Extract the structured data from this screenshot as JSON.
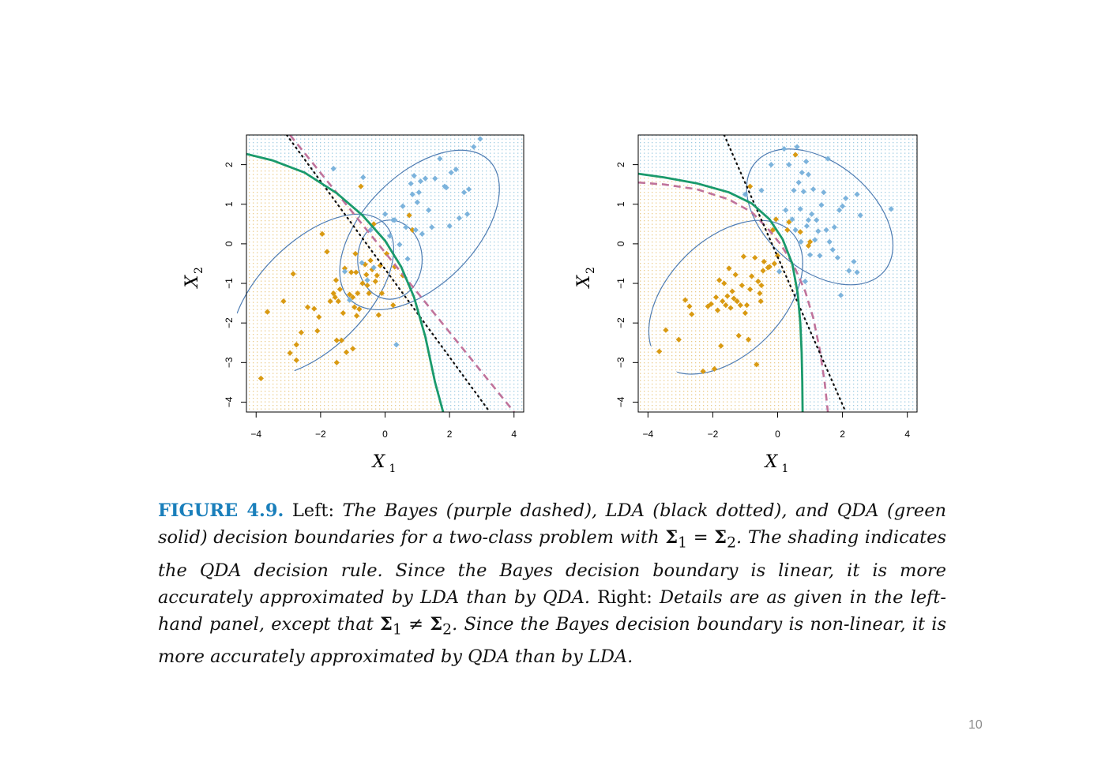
{
  "chart_data": [
    {
      "type": "scatter",
      "panel": "left",
      "xlabel": "X",
      "xlabel_sub": "1",
      "ylabel": "X",
      "ylabel_sub": "2",
      "xlim": [
        -4.3,
        4.3
      ],
      "ylim": [
        -4.25,
        2.75
      ],
      "xticks": [
        -4,
        -2,
        0,
        2,
        4
      ],
      "yticks": [
        -4,
        -3,
        -2,
        -1,
        0,
        1,
        2
      ],
      "xtick_labels": [
        "−4",
        "−2",
        "0",
        "2",
        "4"
      ],
      "ytick_labels": [
        "−4",
        "−3",
        "−2",
        "−1",
        "0",
        "1",
        "2"
      ],
      "boundary_colors": {
        "bayes": "#c0739b",
        "lda": "#111111",
        "qda": "#1a9a6c"
      },
      "region_colors": {
        "orange": "#e2b860",
        "blue": "#7fb9d8"
      },
      "ellipse_color": "#4f7db3",
      "series": [
        {
          "class": "orange",
          "color": "#d99a12",
          "points": [
            [
              -3.85,
              -3.4
            ],
            [
              -3.65,
              -1.72
            ],
            [
              -3.15,
              -1.45
            ],
            [
              -2.95,
              -2.76
            ],
            [
              -2.85,
              -0.76
            ],
            [
              -2.75,
              -2.94
            ],
            [
              -2.75,
              -2.55
            ],
            [
              -2.6,
              -2.24
            ],
            [
              -2.4,
              -1.6
            ],
            [
              -2.2,
              -1.64
            ],
            [
              -2.1,
              -2.2
            ],
            [
              -2.05,
              -1.85
            ],
            [
              -1.95,
              0.25
            ],
            [
              -1.8,
              -0.2
            ],
            [
              -1.7,
              -1.45
            ],
            [
              -1.6,
              -1.25
            ],
            [
              -1.55,
              -1.35
            ],
            [
              -1.52,
              -0.92
            ],
            [
              -1.5,
              -2.44
            ],
            [
              -1.5,
              -3.0
            ],
            [
              -1.45,
              -1.45
            ],
            [
              -1.4,
              -1.15
            ],
            [
              -1.35,
              -2.44
            ],
            [
              -1.3,
              -1.75
            ],
            [
              -1.25,
              -0.62
            ],
            [
              -1.2,
              -2.74
            ],
            [
              -1.1,
              -1.28
            ],
            [
              -1.05,
              -0.72
            ],
            [
              -1.0,
              -2.65
            ],
            [
              -1.0,
              -1.35
            ],
            [
              -0.95,
              -1.6
            ],
            [
              -0.92,
              -0.25
            ],
            [
              -0.9,
              -0.72
            ],
            [
              -0.88,
              -1.82
            ],
            [
              -0.85,
              -1.25
            ],
            [
              -0.8,
              -1.65
            ],
            [
              -0.75,
              1.45
            ],
            [
              -0.7,
              -1.0
            ],
            [
              -0.62,
              -0.52
            ],
            [
              -0.58,
              -0.78
            ],
            [
              -0.55,
              -1.05
            ],
            [
              -0.5,
              -1.25
            ],
            [
              -0.45,
              -0.42
            ],
            [
              -0.4,
              -0.65
            ],
            [
              -0.35,
              0.5
            ],
            [
              -0.3,
              -0.95
            ],
            [
              -0.25,
              -0.8
            ],
            [
              -0.2,
              -1.8
            ],
            [
              -0.15,
              -0.55
            ],
            [
              -0.1,
              -1.25
            ],
            [
              0.05,
              -0.25
            ],
            [
              0.25,
              -1.55
            ],
            [
              0.3,
              -0.58
            ],
            [
              0.55,
              -0.8
            ],
            [
              0.75,
              0.72
            ],
            [
              0.85,
              0.35
            ]
          ]
        },
        {
          "class": "blue",
          "color": "#7cb3dc",
          "points": [
            [
              -1.6,
              1.9
            ],
            [
              -1.25,
              -0.7
            ],
            [
              -1.1,
              -1.42
            ],
            [
              -0.72,
              -0.48
            ],
            [
              -0.68,
              1.68
            ],
            [
              -0.55,
              -0.92
            ],
            [
              -0.45,
              0.35
            ],
            [
              -0.35,
              -0.6
            ],
            [
              0.0,
              0.75
            ],
            [
              0.15,
              0.2
            ],
            [
              0.25,
              0.6
            ],
            [
              0.35,
              -2.55
            ],
            [
              0.45,
              -0.02
            ],
            [
              0.65,
              0.42
            ],
            [
              0.7,
              -0.38
            ],
            [
              0.8,
              1.52
            ],
            [
              0.85,
              1.25
            ],
            [
              0.9,
              1.72
            ],
            [
              0.95,
              0.35
            ],
            [
              1.0,
              1.05
            ],
            [
              1.05,
              1.3
            ],
            [
              1.1,
              1.58
            ],
            [
              1.15,
              0.25
            ],
            [
              1.25,
              1.65
            ],
            [
              1.35,
              0.85
            ],
            [
              1.45,
              0.42
            ],
            [
              1.55,
              1.65
            ],
            [
              1.7,
              2.15
            ],
            [
              1.85,
              1.45
            ],
            [
              1.9,
              1.42
            ],
            [
              2.0,
              0.45
            ],
            [
              2.05,
              1.8
            ],
            [
              2.2,
              1.88
            ],
            [
              2.3,
              0.65
            ],
            [
              2.45,
              1.3
            ],
            [
              2.55,
              0.75
            ],
            [
              2.6,
              1.38
            ],
            [
              2.75,
              2.45
            ],
            [
              2.95,
              2.65
            ],
            [
              0.3,
              0.6
            ],
            [
              0.55,
              0.95
            ]
          ]
        }
      ],
      "bayes_line": [
        [
          -2.95,
          2.75
        ],
        [
          4.0,
          -4.25
        ]
      ],
      "lda_line": [
        [
          -3.05,
          2.75
        ],
        [
          3.25,
          -4.25
        ]
      ],
      "qda_curve": [
        [
          -4.3,
          2.27
        ],
        [
          -3.5,
          2.11
        ],
        [
          -2.5,
          1.8
        ],
        [
          -1.5,
          1.28
        ],
        [
          -0.7,
          0.72
        ],
        [
          0.0,
          0.08
        ],
        [
          0.5,
          -0.58
        ],
        [
          0.9,
          -1.35
        ],
        [
          1.25,
          -2.35
        ],
        [
          1.55,
          -3.5
        ],
        [
          1.8,
          -4.25
        ]
      ],
      "ellipses": [
        {
          "cx": 1.07,
          "cy": 0.35,
          "rx": 3.05,
          "ry": 1.4,
          "angle_deg": 45
        },
        {
          "cx": -2.25,
          "cy": -1.3,
          "rx": 3.15,
          "ry": 1.35,
          "angle_deg": 45
        },
        {
          "cx": 0.15,
          "cy": -0.4,
          "rx": 1.0,
          "ry": 1.0,
          "angle_deg": 0
        }
      ]
    },
    {
      "type": "scatter",
      "panel": "right",
      "xlabel": "X",
      "xlabel_sub": "1",
      "ylabel": "X",
      "ylabel_sub": "2",
      "xlim": [
        -4.3,
        4.3
      ],
      "ylim": [
        -4.25,
        2.75
      ],
      "xticks": [
        -4,
        -2,
        0,
        2,
        4
      ],
      "yticks": [
        -4,
        -3,
        -2,
        -1,
        0,
        1,
        2
      ],
      "xtick_labels": [
        "−4",
        "−2",
        "0",
        "2",
        "4"
      ],
      "ytick_labels": [
        "−4",
        "−3",
        "−2",
        "−1",
        "0",
        "1",
        "2"
      ],
      "boundary_colors": {
        "bayes": "#c0739b",
        "lda": "#111111",
        "qda": "#1a9a6c"
      },
      "region_colors": {
        "orange": "#e2b860",
        "blue": "#7fb9d8"
      },
      "ellipse_color": "#4f7db3",
      "series": [
        {
          "class": "orange",
          "color": "#d99a12",
          "points": [
            [
              -3.65,
              -2.72
            ],
            [
              -3.45,
              -2.18
            ],
            [
              -3.05,
              -2.42
            ],
            [
              -2.85,
              -1.42
            ],
            [
              -2.72,
              -1.58
            ],
            [
              -2.65,
              -1.78
            ],
            [
              -2.3,
              -3.22
            ],
            [
              -2.15,
              -1.58
            ],
            [
              -2.05,
              -1.52
            ],
            [
              -1.95,
              -3.16
            ],
            [
              -1.9,
              -1.35
            ],
            [
              -1.85,
              -1.68
            ],
            [
              -1.8,
              -0.92
            ],
            [
              -1.75,
              -2.58
            ],
            [
              -1.7,
              -1.45
            ],
            [
              -1.65,
              -1.0
            ],
            [
              -1.6,
              -1.55
            ],
            [
              -1.55,
              -1.32
            ],
            [
              -1.5,
              -0.62
            ],
            [
              -1.45,
              -1.62
            ],
            [
              -1.4,
              -1.2
            ],
            [
              -1.35,
              -1.38
            ],
            [
              -1.3,
              -0.78
            ],
            [
              -1.25,
              -1.45
            ],
            [
              -1.2,
              -2.32
            ],
            [
              -1.15,
              -1.55
            ],
            [
              -1.1,
              -1.05
            ],
            [
              -1.05,
              -0.32
            ],
            [
              -1.0,
              -1.75
            ],
            [
              -0.95,
              -1.55
            ],
            [
              -0.9,
              -2.42
            ],
            [
              -0.85,
              -1.15
            ],
            [
              -0.85,
              1.45
            ],
            [
              -0.8,
              -0.82
            ],
            [
              -0.7,
              -0.35
            ],
            [
              -0.65,
              -3.05
            ],
            [
              -0.6,
              -0.95
            ],
            [
              -0.55,
              -1.25
            ],
            [
              -0.52,
              -1.45
            ],
            [
              -0.5,
              -1.05
            ],
            [
              -0.45,
              -0.68
            ],
            [
              -0.42,
              -0.45
            ],
            [
              -0.3,
              -0.6
            ],
            [
              -0.25,
              -0.58
            ],
            [
              -0.15,
              0.35
            ],
            [
              -0.1,
              -0.5
            ],
            [
              -0.05,
              0.62
            ],
            [
              0.0,
              -0.3
            ],
            [
              0.35,
              0.55
            ],
            [
              0.55,
              2.25
            ],
            [
              0.7,
              0.3
            ],
            [
              0.95,
              -0.05
            ],
            [
              1.0,
              0.05
            ],
            [
              0.3,
              0.35
            ]
          ]
        },
        {
          "class": "blue",
          "color": "#7cb3dc",
          "points": [
            [
              -1.0,
              1.25
            ],
            [
              -0.5,
              1.35
            ],
            [
              -0.2,
              2.0
            ],
            [
              0.05,
              -0.7
            ],
            [
              0.2,
              2.4
            ],
            [
              0.25,
              0.85
            ],
            [
              0.35,
              2.0
            ],
            [
              0.45,
              0.62
            ],
            [
              0.5,
              1.35
            ],
            [
              0.55,
              0.35
            ],
            [
              0.6,
              2.45
            ],
            [
              0.65,
              1.55
            ],
            [
              0.7,
              0.88
            ],
            [
              0.72,
              0.05
            ],
            [
              0.75,
              1.8
            ],
            [
              0.8,
              1.32
            ],
            [
              0.85,
              -0.95
            ],
            [
              0.88,
              2.08
            ],
            [
              0.9,
              0.45
            ],
            [
              0.95,
              1.75
            ],
            [
              1.0,
              -0.28
            ],
            [
              1.05,
              0.75
            ],
            [
              1.1,
              1.38
            ],
            [
              1.2,
              0.6
            ],
            [
              1.25,
              0.32
            ],
            [
              1.3,
              -0.3
            ],
            [
              1.35,
              0.98
            ],
            [
              1.42,
              1.3
            ],
            [
              1.5,
              0.35
            ],
            [
              1.55,
              2.15
            ],
            [
              1.6,
              0.05
            ],
            [
              1.7,
              -0.15
            ],
            [
              1.75,
              0.42
            ],
            [
              1.85,
              -0.35
            ],
            [
              1.9,
              0.85
            ],
            [
              1.95,
              -1.3
            ],
            [
              2.0,
              0.95
            ],
            [
              2.1,
              1.15
            ],
            [
              2.2,
              -0.68
            ],
            [
              2.35,
              -0.45
            ],
            [
              2.45,
              1.25
            ],
            [
              2.55,
              0.72
            ],
            [
              2.45,
              -0.72
            ],
            [
              3.5,
              0.88
            ],
            [
              0.95,
              0.6
            ],
            [
              1.15,
              0.1
            ]
          ]
        }
      ],
      "bayes_curve": [
        [
          -4.3,
          1.55
        ],
        [
          -3.5,
          1.5
        ],
        [
          -2.5,
          1.38
        ],
        [
          -1.5,
          1.12
        ],
        [
          -0.8,
          0.8
        ],
        [
          -0.3,
          0.38
        ],
        [
          0.1,
          -0.02
        ],
        [
          0.5,
          -0.55
        ],
        [
          0.85,
          -1.2
        ],
        [
          1.1,
          -1.88
        ],
        [
          1.3,
          -2.68
        ],
        [
          1.45,
          -3.5
        ],
        [
          1.55,
          -4.25
        ]
      ],
      "lda_line": [
        [
          -1.65,
          2.75
        ],
        [
          2.1,
          -4.25
        ]
      ],
      "qda_curve": [
        [
          -4.3,
          1.77
        ],
        [
          -3.5,
          1.68
        ],
        [
          -2.5,
          1.53
        ],
        [
          -1.5,
          1.3
        ],
        [
          -0.8,
          1.02
        ],
        [
          -0.25,
          0.62
        ],
        [
          0.15,
          0.12
        ],
        [
          0.45,
          -0.5
        ],
        [
          0.62,
          -1.25
        ],
        [
          0.7,
          -2.0
        ],
        [
          0.74,
          -2.75
        ],
        [
          0.76,
          -3.5
        ],
        [
          0.77,
          -4.25
        ]
      ],
      "ellipses": [
        {
          "cx": 1.3,
          "cy": 0.68,
          "rx": 2.6,
          "ry": 1.35,
          "angle_deg": -40
        },
        {
          "cx": -1.6,
          "cy": -1.35,
          "rx": 2.85,
          "ry": 1.45,
          "angle_deg": 45
        }
      ]
    }
  ],
  "caption": {
    "label": "FIGURE 4.9.",
    "left_word": "Left:",
    "text_a": "The Bayes (purple dashed), LDA (black dotted), and QDA (green solid) decision boundaries for a two-class problem with",
    "sigma1": "Σ",
    "sub1": "1",
    "eq": "=",
    "neq": "≠",
    "sigma2": "Σ",
    "sub2": "2",
    "dot_a": ".",
    "text_b": "The shading indicates the QDA decision rule. Since the Bayes decision boundary is linear, it is more accurately approximated by LDA than by QDA.",
    "right_word": "Right:",
    "text_c": "Details are as given in the left-hand panel, except that",
    "text_d": ". Since the Bayes decision boundary is non-linear, it is more accurately approximated by QDA than by LDA."
  },
  "page_number": "10"
}
